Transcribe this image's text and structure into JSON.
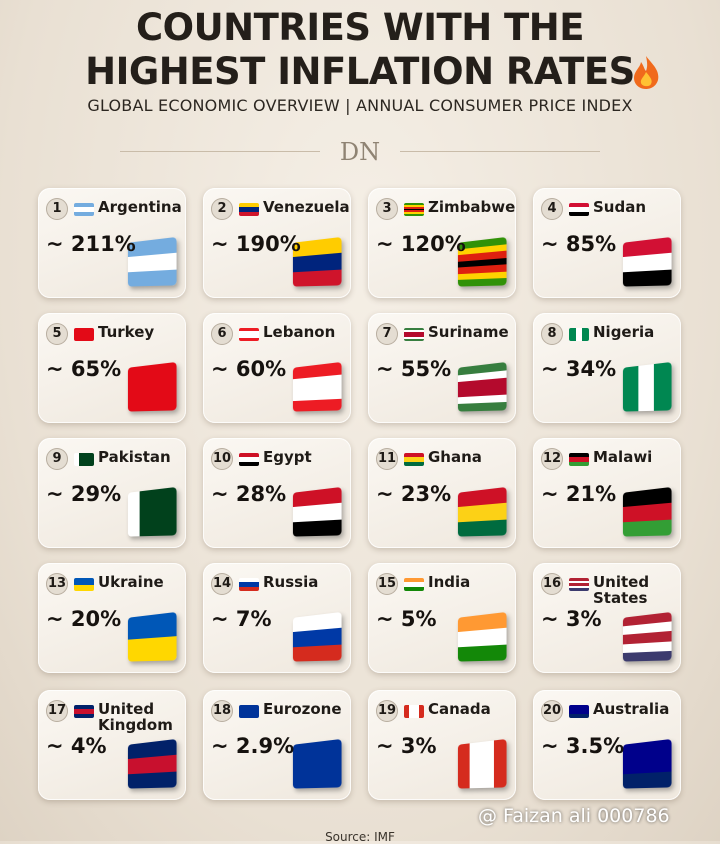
{
  "header": {
    "title_lines": [
      "COUNTRIES WITH THE",
      "HIGHEST INFLATION RATES"
    ],
    "subtitle": "GLOBAL ECONOMIC OVERVIEW | ANNUAL CONSUMER PRICE INDEX",
    "logo": "DN"
  },
  "cards": [
    {
      "rank": 1,
      "country": "Argentina",
      "value": "~ 211%"
    },
    {
      "rank": 2,
      "country": "Venezuela",
      "value": "~ 190%"
    },
    {
      "rank": 3,
      "country": "Zimbabwe",
      "value": "~ 120%"
    },
    {
      "rank": 4,
      "country": "Sudan",
      "value": "~ 85%"
    },
    {
      "rank": 5,
      "country": "Turkey",
      "value": "~ 65%"
    },
    {
      "rank": 6,
      "country": "Lebanon",
      "value": "~ 60%"
    },
    {
      "rank": 7,
      "country": "Suriname",
      "value": "~ 55%"
    },
    {
      "rank": 8,
      "country": "Nigeria",
      "value": "~ 34%"
    },
    {
      "rank": 9,
      "country": "Pakistan",
      "value": "~ 29%"
    },
    {
      "rank": 10,
      "country": "Egypt",
      "value": "~ 28%"
    },
    {
      "rank": 11,
      "country": "Ghana",
      "value": "~ 23%"
    },
    {
      "rank": 12,
      "country": "Malawi",
      "value": "~ 21%"
    },
    {
      "rank": 13,
      "country": "Ukraine",
      "value": "~ 20%"
    },
    {
      "rank": 14,
      "country": "Russia",
      "value": "~ 7%"
    },
    {
      "rank": 15,
      "country": "India",
      "value": "~ 5%"
    },
    {
      "rank": 16,
      "country": "United States",
      "value": "~ 3%"
    },
    {
      "rank": 17,
      "country": "United Kingdom",
      "value": "~ 4%"
    },
    {
      "rank": 18,
      "country": "Eurozone",
      "value": "~ 2.9%"
    },
    {
      "rank": 19,
      "country": "Canada",
      "value": "~ 3%"
    },
    {
      "rank": 20,
      "country": "Australia",
      "value": "~ 3.5%"
    }
  ],
  "footer": {
    "source": "Source: IMF",
    "watermark": "@ Faizan ali 000786"
  }
}
